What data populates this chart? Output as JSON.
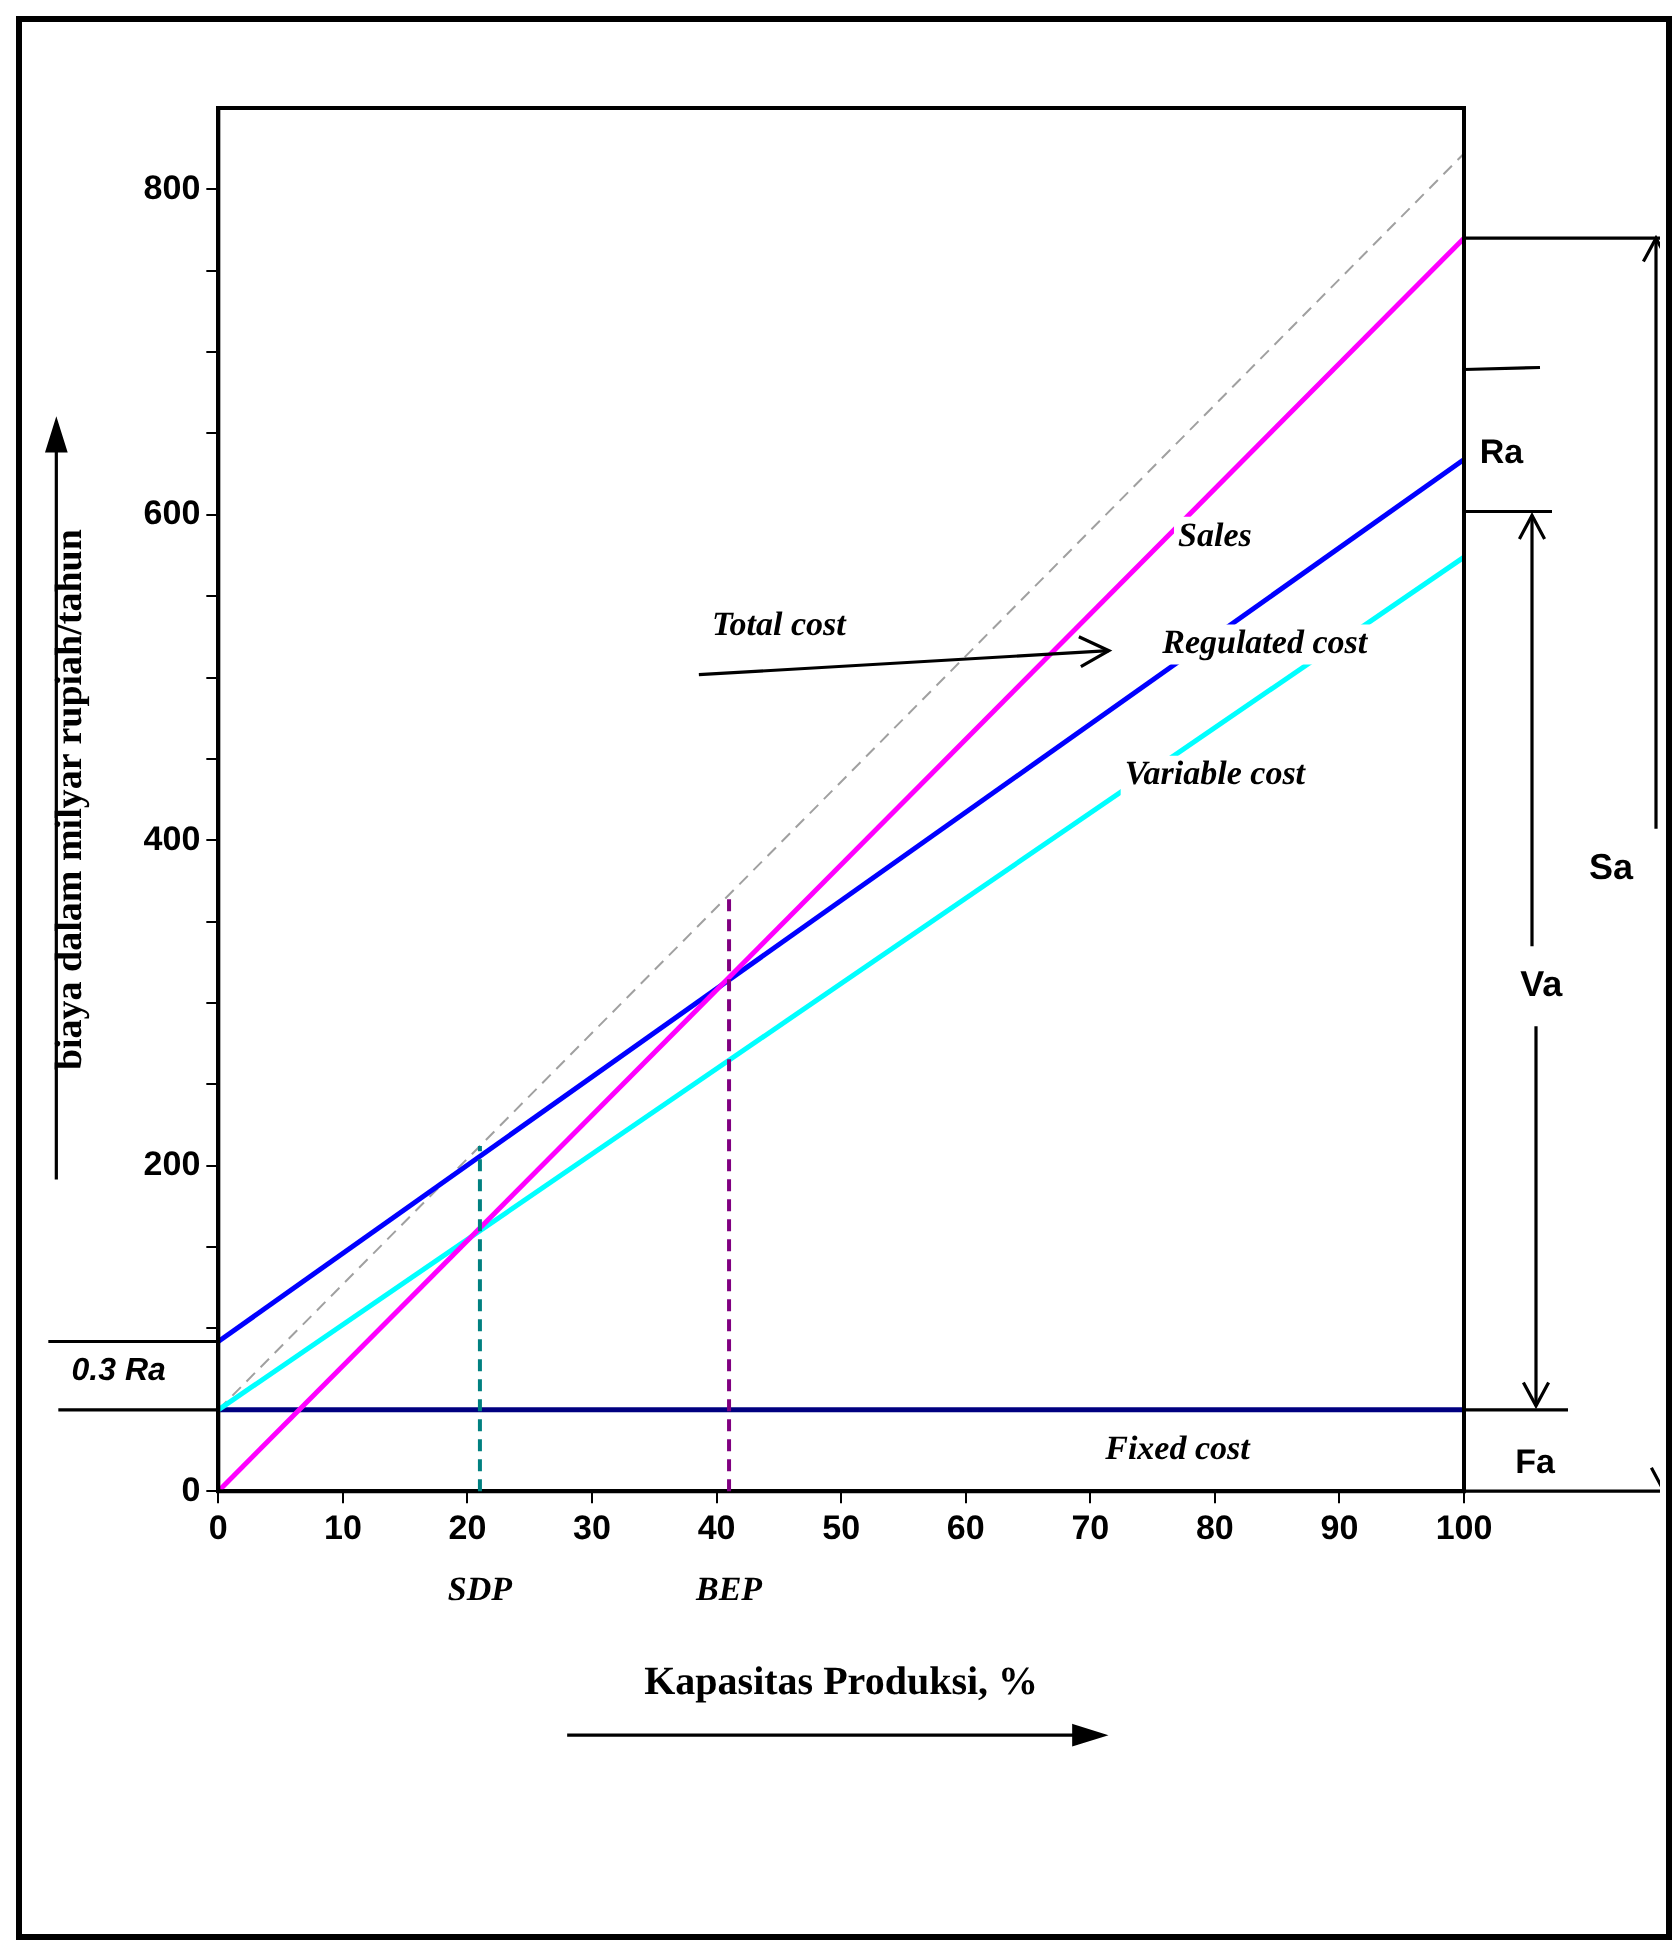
{
  "chart_data": {
    "type": "line",
    "xlabel": "Kapasitas Produksi, %",
    "ylabel": "biaya dalam milyar rupiah/tahun",
    "x": [
      0,
      100
    ],
    "xlim": [
      0,
      100
    ],
    "xticks": [
      0,
      10,
      20,
      30,
      40,
      50,
      60,
      70,
      80,
      90,
      100
    ],
    "ylim": [
      0,
      850
    ],
    "yticks": [
      0,
      {
        "value": 50,
        "label": null
      },
      {
        "value": 100,
        "label": null
      },
      {
        "value": 150,
        "label": null
      },
      200,
      {
        "value": 250,
        "label": null
      },
      {
        "value": 300,
        "label": null
      },
      {
        "value": 350,
        "label": null
      },
      400,
      {
        "value": 450,
        "label": null
      },
      {
        "value": 500,
        "label": null
      },
      {
        "value": 550,
        "label": null
      },
      600,
      {
        "value": 650,
        "label": null
      },
      {
        "value": 700,
        "label": null
      },
      {
        "value": 750,
        "label": null
      },
      800
    ],
    "grid": false,
    "legend": false,
    "marker": "none",
    "series": [
      {
        "name": "Sales",
        "color": "#ff00ff",
        "values": [
          0,
          770
        ]
      },
      {
        "name": "Regulated cost",
        "color": "#0000ff",
        "values": [
          92,
          634
        ]
      },
      {
        "name": "Variable cost",
        "color": "#00ffff",
        "values": [
          50,
          574
        ]
      },
      {
        "name": "Fixed cost",
        "color": "#000080",
        "values": [
          50,
          50
        ]
      },
      {
        "color": "#a0a0a0",
        "values": [
          50,
          822
        ],
        "line_style": "dashed"
      }
    ],
    "ref_lines": [
      {
        "axis": "x",
        "value": 21,
        "label": "SDP",
        "color": "#008080",
        "line_style": "dashed"
      },
      {
        "axis": "x",
        "value": 41,
        "label": "BEP",
        "color": "#800080",
        "line_style": "dashed"
      }
    ],
    "annotations": [
      "Total cost",
      "Ra",
      "Sa",
      "Va",
      "Fa",
      "0.3 Ra"
    ]
  }
}
